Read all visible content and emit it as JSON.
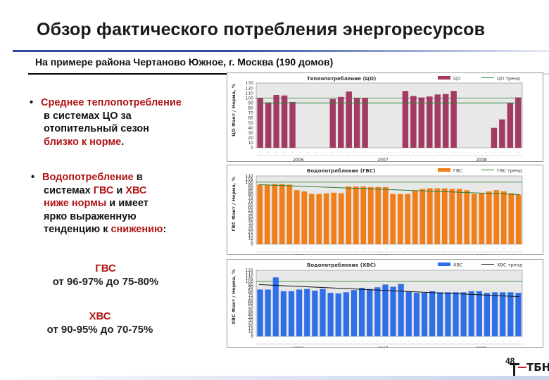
{
  "header": {
    "title": "Обзор фактического потребления энергоресурсов",
    "subtitle": "На примере района Чертаново Южное, г. Москва  (190 домов)"
  },
  "bullets": [
    {
      "parts": [
        [
          "Среднее теплопотребление",
          true
        ],
        [
          " в системах ЦО за отопительный сезон",
          false
        ],
        [
          " близко к норме",
          true
        ],
        [
          ".",
          false
        ]
      ]
    },
    {
      "parts": [
        [
          "Водопотребление",
          true
        ],
        [
          " в системах ",
          false
        ],
        [
          "ГВС",
          true
        ],
        [
          " и ",
          false
        ],
        [
          "ХВС",
          true
        ],
        [
          " ниже нормы",
          true
        ],
        [
          " и имеет ярко выраженную тенденцию к ",
          false
        ],
        [
          "снижению",
          true
        ],
        [
          ":",
          false
        ]
      ]
    }
  ],
  "bullet1_lines": [
    "Среднее теплопотребление",
    "в системах ЦО за",
    "отопительный сезон",
    "близко к норме."
  ],
  "bullet2_lines": [
    "Водопотребление в",
    "системах ГВС и ХВС",
    "ниже нормы и имеет",
    "ярко выраженную",
    "тенденцию к снижению:"
  ],
  "kpi": {
    "gvs_label": "ГВС",
    "gvs_text": "от 96-97%  до 75-80%",
    "hvs_label": "ХВС",
    "hvs_text": "от 90-95% до 70-75%"
  },
  "footer": {
    "page": "48",
    "logo": "ТБН"
  },
  "colors": {
    "co": "#a23a63",
    "gvs": "#f07f1b",
    "hvs": "#2f6fe8",
    "trend_co": "#2e8b3a",
    "trend_gvs": "#2e7d2e",
    "trend_hvs": "#111111",
    "plot_bg": "#e8e8e8"
  },
  "chart_data": [
    {
      "type": "bar",
      "title": "Теплопотребление (ЦО)",
      "ylabel": "ЦО Факт / Норма, %",
      "ylim": [
        0,
        130
      ],
      "yticks": [
        0,
        10,
        20,
        30,
        40,
        50,
        60,
        70,
        80,
        90,
        100,
        110,
        120,
        130
      ],
      "legend": [
        "ЦО",
        "ЦО тренд"
      ],
      "years": [
        "2006",
        "2007",
        "2008"
      ],
      "series": [
        {
          "name": "ЦО",
          "values": [
            100,
            91,
            106,
            105,
            92,
            null,
            null,
            null,
            null,
            98,
            102,
            113,
            100,
            100,
            null,
            null,
            null,
            null,
            114,
            104,
            101,
            103,
            107,
            108,
            114,
            null,
            null,
            null,
            null,
            40,
            57,
            90,
            101
          ]
        },
        {
          "name": "ЦО тренд",
          "values": [
            90,
            90
          ]
        }
      ]
    },
    {
      "type": "bar",
      "title": "Водопотребление (ГВС)",
      "ylabel": "ГВС Факт / Норма, %",
      "ylim": [
        0,
        110
      ],
      "yticks": [
        0,
        5,
        10,
        15,
        20,
        25,
        30,
        35,
        40,
        45,
        50,
        55,
        60,
        65,
        70,
        75,
        80,
        85,
        90,
        95,
        100,
        105,
        110
      ],
      "legend": [
        "ГВС",
        "ГВС тренд"
      ],
      "years": [
        "2006",
        "2007",
        "2008"
      ],
      "series": [
        {
          "name": "ГВС",
          "values": [
            96,
            96,
            97,
            97,
            96,
            87,
            85,
            81,
            81,
            82,
            83,
            82,
            93,
            93,
            93,
            92,
            92,
            92,
            81,
            81,
            81,
            86,
            89,
            90,
            90,
            90,
            89,
            89,
            87,
            81,
            82,
            85,
            87,
            85,
            82,
            80
          ]
        },
        {
          "name": "ГВС тренд",
          "values": [
            96,
            80
          ]
        }
      ]
    },
    {
      "type": "bar",
      "title": "Водопотребление (ХВС)",
      "ylabel": "ХВС Факт / Норма, %",
      "ylim": [
        0,
        120
      ],
      "yticks": [
        0,
        5,
        10,
        15,
        20,
        25,
        30,
        35,
        40,
        45,
        50,
        55,
        60,
        65,
        70,
        75,
        80,
        85,
        90,
        95,
        100,
        105,
        110,
        115,
        120
      ],
      "legend": [
        "ХВС",
        "ХВС тренд"
      ],
      "years": [
        "2006",
        "2007",
        "2008"
      ],
      "series": [
        {
          "name": "ХВС",
          "values": [
            85,
            85,
            107,
            82,
            82,
            85,
            86,
            83,
            86,
            79,
            78,
            80,
            84,
            88,
            86,
            89,
            94,
            90,
            95,
            81,
            79,
            79,
            82,
            80,
            80,
            80,
            80,
            82,
            82,
            79,
            80,
            80,
            80,
            79
          ]
        },
        {
          "name": "ХВС тренд",
          "values": [
            94,
            72
          ]
        }
      ]
    }
  ]
}
